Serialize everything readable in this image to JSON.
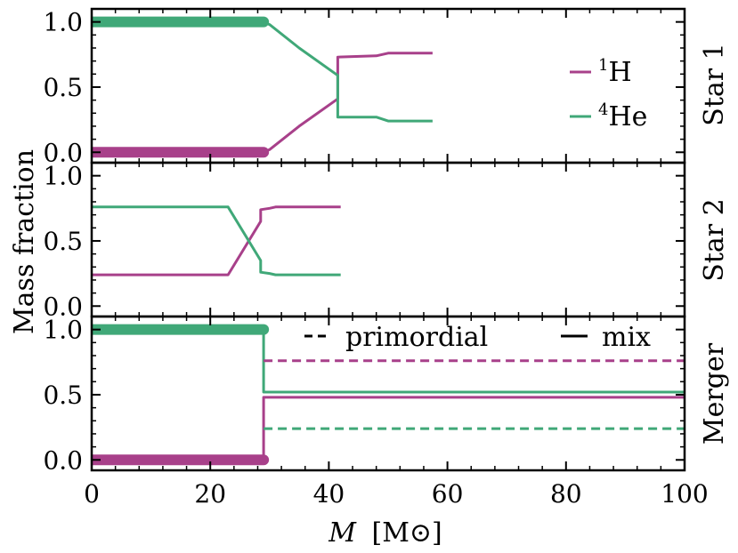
{
  "colors": {
    "h1": "#a8408a",
    "he4": "#40a878",
    "axes": "#000000"
  },
  "chart_data": {
    "type": "line",
    "xlabel": "M [M⊙]",
    "xlabel_italic": "M",
    "xlabel_rest": "[M⊙]",
    "ylabel": "Mass fraction",
    "xlim": [
      0,
      100
    ],
    "ylim": [
      -0.08,
      1.1
    ],
    "xticks": [
      0,
      20,
      40,
      60,
      80,
      100
    ],
    "yticks": [
      0.0,
      0.5,
      1.0
    ],
    "xtick_labels": [
      "0",
      "20",
      "40",
      "60",
      "80",
      "100"
    ],
    "ytick_labels": [
      "0.0",
      "0.5",
      "1.0"
    ],
    "legend": {
      "placement": "right",
      "entries": [
        {
          "name": "1H",
          "sup": "1",
          "base": "H",
          "color": "#a8408a"
        },
        {
          "name": "4He",
          "sup": "4",
          "base": "He",
          "color": "#40a878"
        }
      ]
    },
    "style_legend": {
      "placement": "top",
      "entries": [
        {
          "name": "primordial",
          "style": "dashed"
        },
        {
          "name": "mix",
          "style": "solid"
        }
      ]
    },
    "panels": [
      {
        "name": "Star 1",
        "series": [
          {
            "name": "1H",
            "style": "solid",
            "noisy_until": 29,
            "x": [
              0,
              29,
              30,
              35,
              41.5,
              41.5,
              48,
              50,
              57.5
            ],
            "y": [
              0.0,
              0.0,
              0.02,
              0.2,
              0.41,
              0.73,
              0.74,
              0.76,
              0.76
            ]
          },
          {
            "name": "4He",
            "style": "solid",
            "noisy_until": 29,
            "x": [
              0,
              29,
              30,
              35,
              41.5,
              41.5,
              48,
              50,
              57.5
            ],
            "y": [
              1.0,
              1.0,
              0.98,
              0.8,
              0.59,
              0.27,
              0.27,
              0.24,
              0.24
            ]
          }
        ]
      },
      {
        "name": "Star 2",
        "series": [
          {
            "name": "1H",
            "style": "solid",
            "x": [
              0,
              23,
              28.5,
              28.5,
              30,
              31,
              42
            ],
            "y": [
              0.24,
              0.24,
              0.65,
              0.74,
              0.75,
              0.76,
              0.76
            ]
          },
          {
            "name": "4He",
            "style": "solid",
            "x": [
              0,
              23,
              28.5,
              28.5,
              30,
              31,
              42
            ],
            "y": [
              0.76,
              0.76,
              0.35,
              0.26,
              0.25,
              0.24,
              0.24
            ]
          }
        ]
      },
      {
        "name": "Merger",
        "series": [
          {
            "name": "1H",
            "style": "solid",
            "noisy_until": 29,
            "x": [
              0,
              29,
              29,
              100
            ],
            "y": [
              0.0,
              0.0,
              0.48,
              0.48
            ]
          },
          {
            "name": "4He",
            "style": "solid",
            "noisy_until": 29,
            "x": [
              0,
              29,
              29,
              100
            ],
            "y": [
              1.0,
              1.0,
              0.52,
              0.52
            ]
          },
          {
            "name": "1H",
            "style": "dashed",
            "x": [
              29,
              100
            ],
            "y": [
              0.76,
              0.76
            ]
          },
          {
            "name": "4He",
            "style": "dashed",
            "x": [
              29,
              100
            ],
            "y": [
              0.24,
              0.24
            ]
          }
        ]
      }
    ]
  }
}
